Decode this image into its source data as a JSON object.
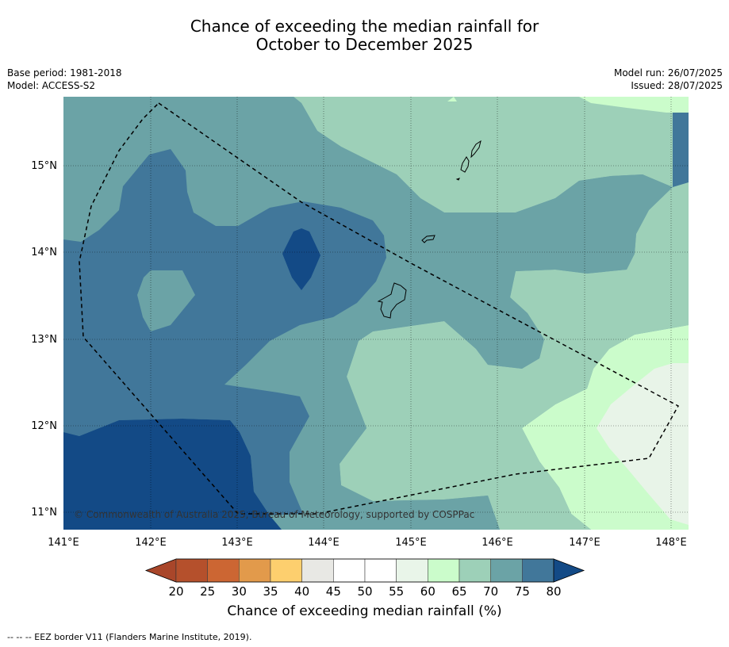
{
  "title": {
    "line1": "Chance of exceeding the median rainfall for",
    "line2": "October to December 2025"
  },
  "meta_left": {
    "base_period": "Base period: 1981-2018",
    "model": "Model: ACCESS-S2"
  },
  "meta_right": {
    "model_run": "Model run: 26/07/2025",
    "issued": "Issued: 28/07/2025"
  },
  "map": {
    "lon_labels": [
      "141°E",
      "142°E",
      "143°E",
      "144°E",
      "145°E",
      "146°E",
      "147°E",
      "148°E"
    ],
    "lat_labels": [
      "15°N",
      "14°N",
      "13°N",
      "12°N",
      "11°N"
    ],
    "copyright": "© Commonwealth of Australia 2025, Bureau of Meteorology, supported by COSPPac",
    "colors": {
      "c80": "#134a86",
      "c75": "#41779a",
      "c70": "#6ba3a6",
      "c65": "#9dd0b8",
      "c60": "#cbfccb",
      "c55": "#e8f4e8"
    }
  },
  "colorbar": {
    "labels": [
      "20",
      "25",
      "30",
      "35",
      "40",
      "45",
      "50",
      "55",
      "60",
      "65",
      "70",
      "75",
      "80"
    ],
    "colors": [
      "#a9462a",
      "#b5502c",
      "#cc6633",
      "#e29a4b",
      "#fdcf6e",
      "#e8e8e4",
      "#ffffff",
      "#ffffff",
      "#e9f5e9",
      "#cbfccb",
      "#9dd0b8",
      "#6ba3a6",
      "#41779a",
      "#134a86"
    ],
    "title": "Chance of exceeding median rainfall (%)"
  },
  "footnote": "--  --  -- EEZ border V11 (Flanders Marine Institute, 2019)."
}
